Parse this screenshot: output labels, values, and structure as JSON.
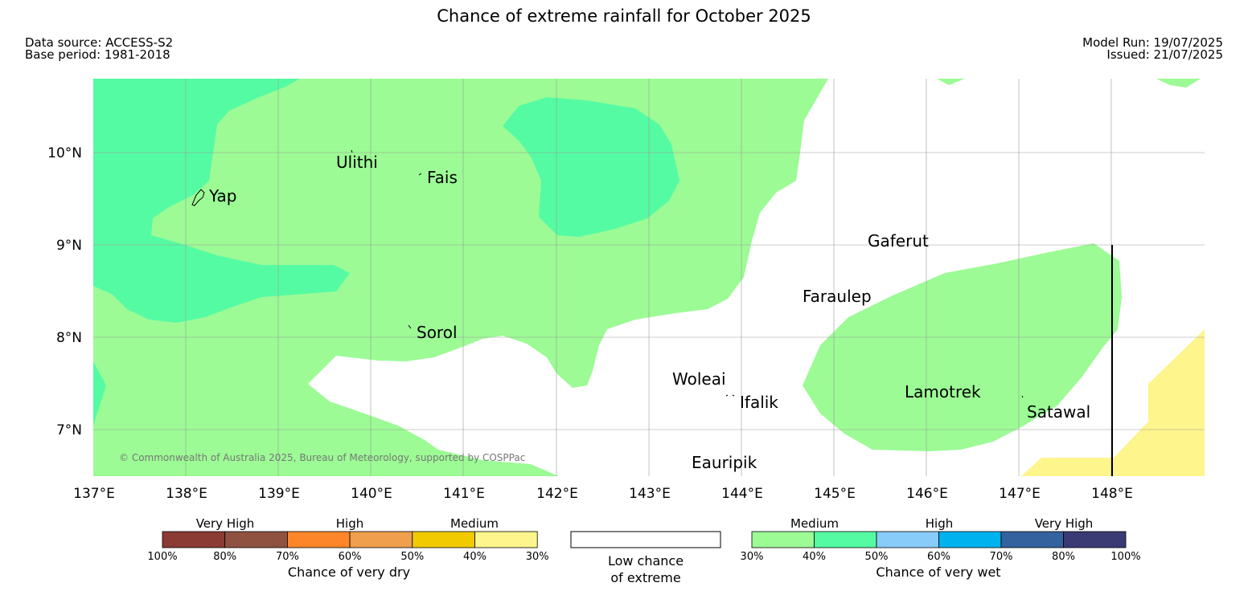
{
  "header": {
    "title": "Chance of extreme rainfall for October 2025",
    "data_source": "Data source: ACCESS-S2",
    "base_period": "Base period: 1981-2018",
    "model_run": "Model Run: 19/07/2025",
    "issued": "Issued: 21/07/2025"
  },
  "map": {
    "lat_ticks": [
      "10°N",
      "9°N",
      "8°N",
      "7°N"
    ],
    "lon_ticks": [
      "137°E",
      "138°E",
      "139°E",
      "140°E",
      "141°E",
      "142°E",
      "143°E",
      "144°E",
      "145°E",
      "146°E",
      "147°E",
      "148°E"
    ],
    "places": [
      "Ulithi",
      "Fais",
      "Yap",
      "Gaferut",
      "Faraulep",
      "Sorol",
      "Woleai",
      "Ifalik",
      "Lamotrek",
      "Satawal",
      "Eauripik"
    ],
    "copyright": "© Commonwealth of Australia 2025, Bureau of Meteorology, supported by COSPPac",
    "region_colors": {
      "wet_medium": "#9cfb95",
      "wet_medium_high": "#55fba3",
      "dry_low": "#fef58d",
      "grid": "#999999"
    }
  },
  "legend": {
    "dry": {
      "categories": [
        "Very High",
        "High",
        "Medium"
      ],
      "colors": [
        "#8c3a34",
        "#8f5140",
        "#fd862a",
        "#f09f4d",
        "#f1ca00",
        "#fef58d"
      ],
      "ticks": [
        "100%",
        "80%",
        "70%",
        "60%",
        "50%",
        "40%",
        "30%"
      ],
      "title": "Chance of very dry"
    },
    "low": {
      "line1": "Low chance",
      "line2": "of extreme"
    },
    "wet": {
      "categories": [
        "Medium",
        "High",
        "Very High"
      ],
      "colors": [
        "#9cfb95",
        "#55fba3",
        "#88ccf9",
        "#00b2ee",
        "#34629e",
        "#3a3b74"
      ],
      "ticks": [
        "30%",
        "40%",
        "50%",
        "60%",
        "70%",
        "80%",
        "100%"
      ],
      "title": "Chance of very wet"
    }
  }
}
